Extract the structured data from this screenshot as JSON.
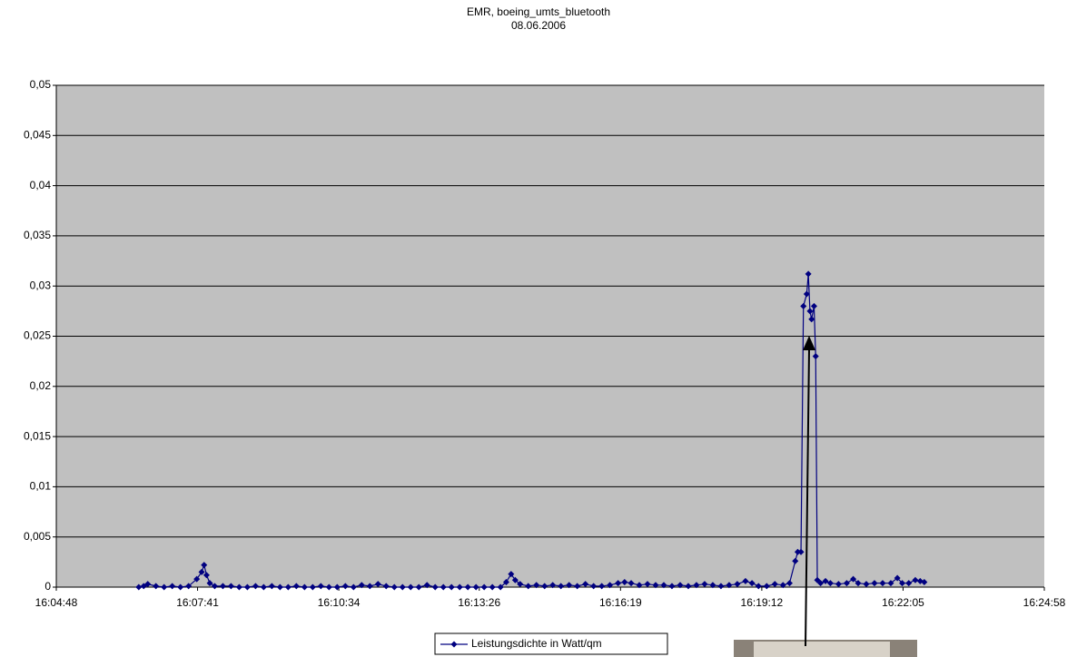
{
  "chart_data": {
    "type": "line",
    "title": "EMR, boeing_umts_bluetooth",
    "subtitle": "08.06.2006",
    "x": [
      57989,
      57995,
      58000,
      58010,
      58020,
      58030,
      58040,
      58050,
      58060,
      58066,
      58069,
      58072,
      58076,
      58082,
      58092,
      58102,
      58112,
      58122,
      58132,
      58142,
      58152,
      58162,
      58172,
      58182,
      58192,
      58202,
      58212,
      58222,
      58232,
      58242,
      58252,
      58262,
      58272,
      58282,
      58292,
      58302,
      58312,
      58322,
      58332,
      58342,
      58352,
      58362,
      58372,
      58382,
      58392,
      58402,
      58412,
      58422,
      58432,
      58439,
      58445,
      58450,
      58456,
      58466,
      58476,
      58486,
      58496,
      58506,
      58516,
      58526,
      58536,
      58546,
      58556,
      58566,
      58576,
      58584,
      58592,
      58602,
      58612,
      58622,
      58632,
      58642,
      58652,
      58662,
      58672,
      58682,
      58692,
      58702,
      58712,
      58722,
      58732,
      58740,
      58748,
      58758,
      58768,
      58778,
      58786,
      58793,
      58796,
      58800,
      58803,
      58807,
      58809,
      58811,
      58813,
      58816,
      58818,
      58820,
      58824,
      58830,
      58836,
      58846,
      58856,
      58864,
      58870,
      58880,
      58890,
      58900,
      58910,
      58918,
      58924,
      58932,
      58940,
      58946,
      58951
    ],
    "series": [
      {
        "name": "Leistungsdichte in Watt/qm",
        "color": "#000080",
        "values": [
          0,
          0.0001,
          0.0003,
          0.0001,
          0,
          0.0001,
          0,
          0.0001,
          0.0008,
          0.0015,
          0.0022,
          0.0012,
          0.0004,
          0.0001,
          0.0001,
          0.0001,
          0,
          0,
          0.0001,
          0,
          0.0001,
          0,
          0,
          0.0001,
          0,
          0,
          0.0001,
          0,
          0,
          0.0001,
          0,
          0.0002,
          0.0001,
          0.0003,
          0.0001,
          0,
          0,
          0,
          0,
          0.0002,
          0,
          0,
          0,
          0,
          0,
          0,
          0,
          0,
          0,
          0.0005,
          0.0013,
          0.0007,
          0.0003,
          0.0001,
          0.0002,
          0.0001,
          0.0002,
          0.0001,
          0.0002,
          0.0001,
          0.0003,
          0.0001,
          0.0001,
          0.0002,
          0.0004,
          0.0005,
          0.0004,
          0.0002,
          0.0003,
          0.0002,
          0.0002,
          0.0001,
          0.0002,
          0.0001,
          0.0002,
          0.0003,
          0.0002,
          0.0001,
          0.0002,
          0.0003,
          0.0006,
          0.0004,
          0.0001,
          0.0001,
          0.0003,
          0.0002,
          0.0004,
          0.0026,
          0.0035,
          0.0035,
          0.028,
          0.0292,
          0.0312,
          0.0275,
          0.0267,
          0.028,
          0.023,
          0.0007,
          0.0004,
          0.0006,
          0.0004,
          0.0003,
          0.0004,
          0.0008,
          0.0004,
          0.0003,
          0.0004,
          0.0004,
          0.0004,
          0.0009,
          0.0004,
          0.0004,
          0.0007,
          0.0006,
          0.0005
        ]
      }
    ],
    "xlim": [
      57888,
      59098
    ],
    "xticks": [
      {
        "value": 57888,
        "label": "16:04:48"
      },
      {
        "value": 58061,
        "label": "16:07:41"
      },
      {
        "value": 58234,
        "label": "16:10:34"
      },
      {
        "value": 58406,
        "label": "16:13:26"
      },
      {
        "value": 58579,
        "label": "16:16:19"
      },
      {
        "value": 58752,
        "label": "16:19:12"
      },
      {
        "value": 58925,
        "label": "16:22:05"
      },
      {
        "value": 59098,
        "label": "16:24:58"
      }
    ],
    "ylim": [
      0,
      0.05
    ],
    "yticks": [
      0,
      {
        "value": 0.005,
        "label": "0,005"
      },
      {
        "value": 0.01,
        "label": "0,01"
      },
      {
        "value": 0.015,
        "label": "0,015"
      },
      {
        "value": 0.02,
        "label": "0,02"
      },
      {
        "value": 0.025,
        "label": "0,025"
      },
      {
        "value": 0.03,
        "label": "0,03"
      },
      {
        "value": 0.035,
        "label": "0,035"
      },
      {
        "value": 0.04,
        "label": "0,04"
      },
      {
        "value": 0.045,
        "label": "0,045"
      },
      {
        "value": 0.05,
        "label": "0,05"
      }
    ],
    "grid": true,
    "plot_background": "#c0c0c0"
  }
}
